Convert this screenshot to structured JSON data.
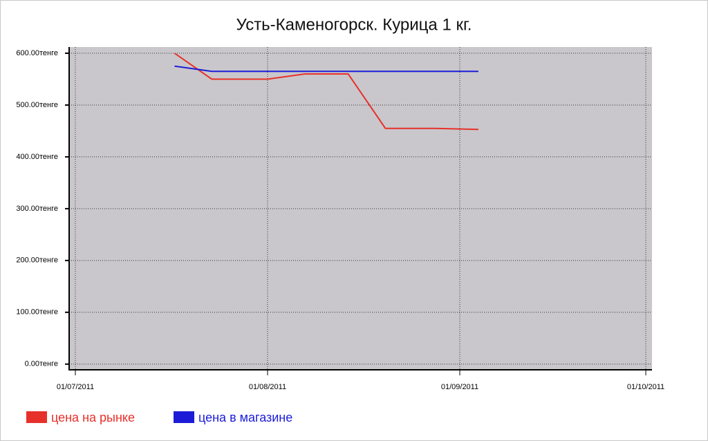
{
  "chart_data": {
    "type": "line",
    "title": "Усть-Каменогорск. Курица 1 кг.",
    "x": [
      "17/07/2011",
      "23/07/2011",
      "01/08/2011",
      "07/08/2011",
      "14/08/2011",
      "20/08/2011",
      "28/08/2011",
      "04/09/2011"
    ],
    "series": [
      {
        "name": "цена на рынке",
        "color": "#e8302a",
        "values": [
          600,
          550,
          550,
          560,
          560,
          455,
          455,
          453
        ]
      },
      {
        "name": "цена в магазине",
        "color": "#1c1cd8",
        "values": [
          575,
          565,
          565,
          565,
          565,
          565,
          565,
          565
        ]
      }
    ],
    "xlim": [
      "30/06/2011",
      "02/10/2011"
    ],
    "xticks": [
      "01/07/2011",
      "01/08/2011",
      "01/09/2011",
      "01/10/2011"
    ],
    "ylim": [
      -11,
      612
    ],
    "yticks": [
      {
        "value": 0,
        "label": "0.00тенге"
      },
      {
        "value": 100,
        "label": "100.00тенге"
      },
      {
        "value": 200,
        "label": "200.00тенге"
      },
      {
        "value": 300,
        "label": "300.00тенге"
      },
      {
        "value": 400,
        "label": "400.00тенге"
      },
      {
        "value": 500,
        "label": "500.00тенге"
      },
      {
        "value": 600,
        "label": "600.00тенге"
      }
    ],
    "grid": true,
    "legend": "bottom"
  }
}
